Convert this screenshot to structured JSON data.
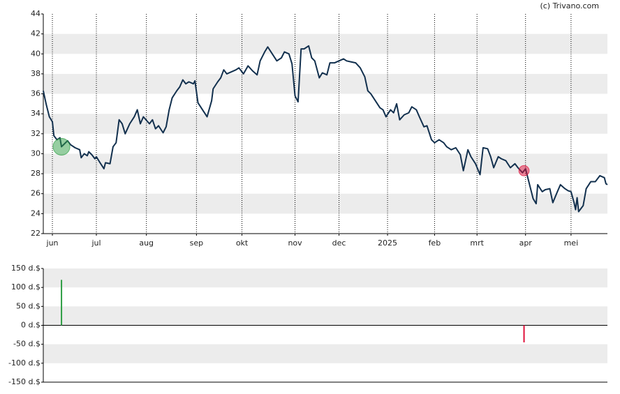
{
  "source": "(c) Trivano.com",
  "chart_data": [
    {
      "type": "line",
      "color": "#12304e",
      "xlim": [
        0,
        372
      ],
      "xticks": [
        {
          "value": 6,
          "label": "jun"
        },
        {
          "value": 35,
          "label": "jul"
        },
        {
          "value": 68,
          "label": "aug"
        },
        {
          "value": 101,
          "label": "sep"
        },
        {
          "value": 131,
          "label": "okt"
        },
        {
          "value": 166,
          "label": "nov"
        },
        {
          "value": 195,
          "label": "dec"
        },
        {
          "value": 227,
          "label": "2025"
        },
        {
          "value": 258,
          "label": "feb"
        },
        {
          "value": 286,
          "label": "mrt"
        },
        {
          "value": 318,
          "label": "apr"
        },
        {
          "value": 348,
          "label": "mei"
        }
      ],
      "ylim": [
        22,
        44
      ],
      "yticks": [
        22,
        24,
        26,
        28,
        30,
        32,
        34,
        36,
        38,
        40,
        42,
        44
      ],
      "grid": true,
      "x": [
        0,
        2,
        4,
        6,
        7,
        9,
        11,
        12,
        14,
        16,
        18,
        21,
        24,
        25,
        27,
        29,
        30,
        32,
        34,
        35,
        37,
        40,
        41,
        44,
        46,
        48,
        50,
        52,
        54,
        57,
        60,
        62,
        64,
        66,
        70,
        72,
        74,
        76,
        79,
        81,
        83,
        85,
        88,
        90,
        92,
        94,
        96,
        99,
        100,
        102,
        105,
        108,
        111,
        112,
        115,
        117,
        119,
        121,
        124,
        127,
        129,
        132,
        135,
        138,
        141,
        143,
        146,
        148,
        151,
        154,
        157,
        159,
        162,
        164,
        166,
        168,
        170,
        172,
        175,
        177,
        179,
        182,
        184,
        187,
        189,
        192,
        195,
        198,
        200,
        203,
        206,
        209,
        212,
        214,
        216,
        219,
        222,
        224,
        226,
        229,
        231,
        233,
        235,
        238,
        241,
        243,
        246,
        248,
        251,
        253,
        256,
        258,
        261,
        264,
        266,
        269,
        272,
        275,
        277,
        280,
        282,
        285,
        288,
        290,
        293,
        295,
        297,
        300,
        302,
        305,
        308,
        311,
        313,
        316,
        318,
        321,
        323,
        325,
        326,
        329,
        331,
        334,
        336,
        339,
        341,
        344,
        346,
        348,
        350,
        351,
        352,
        353,
        356,
        358,
        361,
        364,
        367,
        370,
        371,
        372
      ],
      "values": [
        36.3,
        34.9,
        33.7,
        33.2,
        31.8,
        31.4,
        31.6,
        30.7,
        31.0,
        31.3,
        30.9,
        30.6,
        30.4,
        29.6,
        30.0,
        29.8,
        30.2,
        29.9,
        29.5,
        29.7,
        29.2,
        28.5,
        29.1,
        29.0,
        30.7,
        31.1,
        33.4,
        33.0,
        32.0,
        33.0,
        33.7,
        34.4,
        33.0,
        33.7,
        33.0,
        33.4,
        32.5,
        32.8,
        32.1,
        32.7,
        34.4,
        35.6,
        36.3,
        36.7,
        37.4,
        37.0,
        37.2,
        37.0,
        37.3,
        35.1,
        34.4,
        33.7,
        35.3,
        36.5,
        37.2,
        37.6,
        38.4,
        38.0,
        38.2,
        38.4,
        38.6,
        38.0,
        38.8,
        38.3,
        37.9,
        39.3,
        40.2,
        40.7,
        40.0,
        39.3,
        39.6,
        40.2,
        40.0,
        39.0,
        35.8,
        35.2,
        40.5,
        40.5,
        40.8,
        39.6,
        39.3,
        37.6,
        38.1,
        37.9,
        39.1,
        39.1,
        39.3,
        39.5,
        39.3,
        39.2,
        39.1,
        38.6,
        37.7,
        36.3,
        36.0,
        35.3,
        34.6,
        34.4,
        33.7,
        34.4,
        34.1,
        35.0,
        33.4,
        33.9,
        34.1,
        34.7,
        34.4,
        33.7,
        32.7,
        32.8,
        31.4,
        31.1,
        31.4,
        31.1,
        30.7,
        30.4,
        30.6,
        29.9,
        28.3,
        30.4,
        29.7,
        29.0,
        27.9,
        30.6,
        30.5,
        29.7,
        28.6,
        29.7,
        29.5,
        29.3,
        28.6,
        29.0,
        28.6,
        28.1,
        28.5,
        26.7,
        25.5,
        25.0,
        26.9,
        26.2,
        26.4,
        26.5,
        25.1,
        26.2,
        26.9,
        26.5,
        26.3,
        26.2,
        25.1,
        24.4,
        25.6,
        24.2,
        24.8,
        26.5,
        27.2,
        27.2,
        27.8,
        27.6,
        27.0,
        26.9
      ]
    },
    {
      "type": "bar",
      "xlim": [
        0,
        372
      ],
      "ylim": [
        -150,
        150
      ],
      "yticks": [
        {
          "value": 150,
          "label": "150 d.$"
        },
        {
          "value": 100,
          "label": "100 d.$"
        },
        {
          "value": 50,
          "label": "50 d.$"
        },
        {
          "value": 0,
          "label": "0 d.$"
        },
        {
          "value": -50,
          "label": "-50 d.$"
        },
        {
          "value": -100,
          "label": "-100 d.$"
        },
        {
          "value": -150,
          "label": "-150 d.$"
        }
      ],
      "x": [
        12,
        317
      ],
      "values": [
        120,
        -45
      ],
      "colors": [
        "#2e9e44",
        "#e0103a"
      ]
    }
  ]
}
